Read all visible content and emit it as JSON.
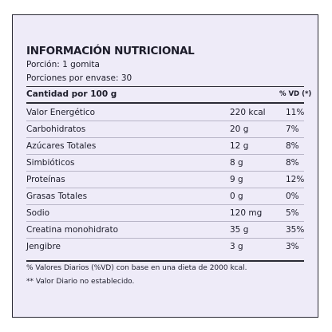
{
  "header": {
    "title": "INFORMACIÓN NUTRICIONAL",
    "serving": "Porción: 1 gomita",
    "servings": "Porciones por envase: 30"
  },
  "table": {
    "columns": [
      "Cantidad por 100 g",
      "% VD (*)"
    ],
    "rows": [
      [
        "Valor Energético",
        "220 kcal",
        "11%"
      ],
      [
        "Carbohidratos",
        "20 g",
        "7%"
      ],
      [
        "Azúcares Totales",
        "12 g",
        "8%"
      ],
      [
        "Simbióticos",
        "8 g",
        "8%"
      ],
      [
        "Proteínas",
        "9 g",
        "12%"
      ],
      [
        "Grasas Totales",
        "0 g",
        "0%"
      ],
      [
        "Sodio",
        "120 mg",
        "5%"
      ],
      [
        "Creatina monohidrato",
        "35 g",
        "35%"
      ],
      [
        "Jengibre",
        "3 g",
        "3%"
      ]
    ]
  },
  "footnotes": [
    "% Valores Diarios (%VD) con base en una dieta de 2000 kcal.",
    "** Valor Diario no establecido."
  ]
}
